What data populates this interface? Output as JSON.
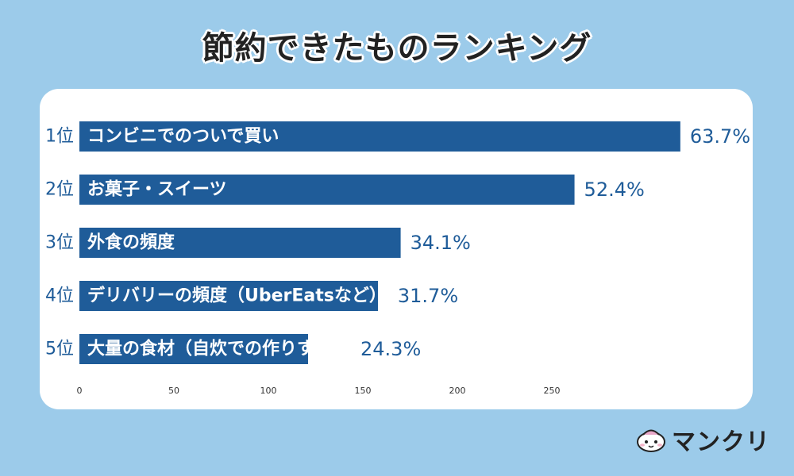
{
  "chart_data": {
    "type": "bar",
    "orientation": "horizontal",
    "title": "節約できたものランキング",
    "ranks": [
      "1位",
      "2位",
      "3位",
      "4位",
      "5位"
    ],
    "categories": [
      "コンビニでのついで買い",
      "お菓子・スイーツ",
      "外食の頻度",
      "デリバリーの頻度（UberEatsなど）",
      "大量の食材（自炊での作りすぎ）"
    ],
    "values": [
      318,
      262,
      170,
      158,
      121
    ],
    "value_labels": [
      "63.7%",
      "52.4%",
      "34.1%",
      "31.7%",
      "24.3%"
    ],
    "xlim": [
      0,
      320
    ],
    "xticks": [
      0,
      50,
      100,
      150,
      200,
      250
    ],
    "bar_color": "#1f5c99"
  },
  "brand": {
    "name": "マンクリ"
  }
}
